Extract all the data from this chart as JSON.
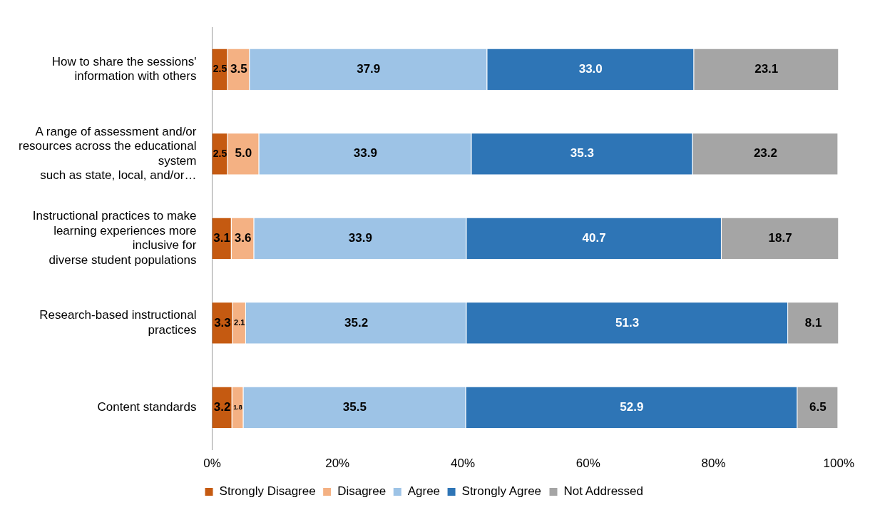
{
  "chart_data": {
    "type": "bar",
    "orientation": "horizontal",
    "stacked": true,
    "grid": false,
    "legend": "bottom",
    "categories": [
      "How to share the sessions'\ninformation with others",
      "A range of assessment and/or\nresources across the educational\nsystem\nsuch as state, local, and/or…",
      "Instructional practices to make\nlearning experiences more\ninclusive for\ndiverse student populations",
      "Research-based instructional\npractices",
      "Content standards"
    ],
    "xlim": [
      0,
      100
    ],
    "xticks": [
      {
        "value": 0,
        "label": "0%"
      },
      {
        "value": 20,
        "label": "20%"
      },
      {
        "value": 40,
        "label": "40%"
      },
      {
        "value": 60,
        "label": "60%"
      },
      {
        "value": 80,
        "label": "80%"
      },
      {
        "value": 100,
        "label": "100%"
      }
    ],
    "series": [
      {
        "name": "Strongly Disagree",
        "color": "#c55a11",
        "values": [
          2.5,
          2.5,
          3.1,
          3.3,
          3.2
        ],
        "value_labels": [
          "2.5",
          "2.5",
          "3.1",
          "3.3",
          "3.2"
        ]
      },
      {
        "name": "Disagree",
        "color": "#f4b183",
        "values": [
          3.5,
          5.0,
          3.6,
          2.1,
          1.8
        ],
        "value_labels": [
          "3.5",
          "5.0",
          "3.6",
          "2.1",
          "1.8"
        ]
      },
      {
        "name": "Agree",
        "color": "#9dc3e6",
        "values": [
          37.9,
          33.9,
          33.9,
          35.2,
          35.5
        ],
        "value_labels": [
          "37.9",
          "33.9",
          "33.9",
          "35.2",
          "35.5"
        ]
      },
      {
        "name": "Strongly Agree",
        "color": "#2e75b6",
        "values": [
          33.0,
          35.3,
          40.7,
          51.3,
          52.9
        ],
        "value_labels": [
          "33.0",
          "35.3",
          "40.7",
          "51.3",
          "52.9"
        ]
      },
      {
        "name": "Not Addressed",
        "color": "#a5a5a5",
        "values": [
          23.1,
          23.2,
          18.7,
          8.1,
          6.5
        ],
        "value_labels": [
          "23.1",
          "23.2",
          "18.7",
          "8.1",
          "6.5"
        ]
      }
    ]
  }
}
